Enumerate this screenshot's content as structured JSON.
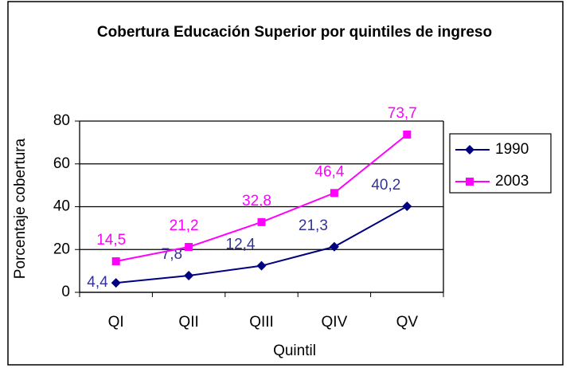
{
  "chart_data": {
    "type": "line",
    "title": "Cobertura Educación Superior por quintiles de ingreso",
    "x_label": "Quintil",
    "y_label": "Porcentaje cobertura",
    "categories": [
      "QI",
      "QII",
      "QIII",
      "QIV",
      "QV"
    ],
    "series": [
      {
        "name": "1990",
        "color": "#000080",
        "label_color": "#333399",
        "marker": "diamond",
        "values": [
          4.4,
          7.8,
          12.4,
          21.3,
          40.2
        ],
        "value_labels": [
          "4,4",
          "7,8",
          "12,4",
          "21,3",
          "40,2"
        ]
      },
      {
        "name": "2003",
        "color": "#ff00ff",
        "label_color": "#ff00ff",
        "marker": "square",
        "values": [
          14.5,
          21.2,
          32.8,
          46.4,
          73.7
        ],
        "value_labels": [
          "14,5",
          "21,2",
          "32,8",
          "46,4",
          "73,7"
        ]
      }
    ],
    "ylim": [
      0,
      80
    ],
    "yticks": [
      0,
      20,
      40,
      60,
      80
    ],
    "grid": true,
    "legend": "right"
  }
}
